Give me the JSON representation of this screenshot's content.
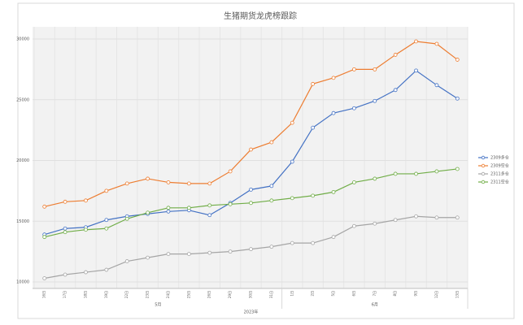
{
  "chart_data": {
    "type": "line",
    "title": "生猪期货龙虎榜跟踪",
    "categories": [
      "16日",
      "17日",
      "18日",
      "19日",
      "22日",
      "23日",
      "24日",
      "25日",
      "26日",
      "29日",
      "30日",
      "31日",
      "1日",
      "2日",
      "5日",
      "6日",
      "7日",
      "8日",
      "9日",
      "12日",
      "13日"
    ],
    "x_groups": [
      {
        "label": "5月",
        "span": 12
      },
      {
        "label": "6月",
        "span": 9
      }
    ],
    "x_super_label": "2023年",
    "series": [
      {
        "name": "2309多仓",
        "color": "#4472c4",
        "values": [
          13900,
          14400,
          14500,
          15100,
          15400,
          15600,
          15800,
          15900,
          15500,
          16500,
          17600,
          17900,
          19900,
          22700,
          23900,
          24300,
          24900,
          25800,
          27400,
          26200,
          25100
        ]
      },
      {
        "name": "2309空仓",
        "color": "#ed7d31",
        "values": [
          16200,
          16600,
          16700,
          17500,
          18100,
          18500,
          18200,
          18100,
          18100,
          19100,
          20900,
          21500,
          23100,
          26300,
          26800,
          27500,
          27500,
          28700,
          29800,
          29600,
          28300
        ]
      },
      {
        "name": "2311多仓",
        "color": "#a5a5a5",
        "values": [
          10300,
          10600,
          10800,
          11000,
          11700,
          12000,
          12300,
          12300,
          12400,
          12500,
          12700,
          12900,
          13200,
          13200,
          13700,
          14600,
          14800,
          15100,
          15400,
          15300,
          15300
        ]
      },
      {
        "name": "2311空仓",
        "color": "#70ad47",
        "values": [
          13700,
          14100,
          14300,
          14400,
          15200,
          15700,
          16100,
          16100,
          16300,
          16400,
          16500,
          16700,
          16900,
          17100,
          17400,
          18200,
          18500,
          18900,
          18900,
          19100,
          19300
        ]
      }
    ],
    "ylim": [
      10000,
      30000
    ],
    "yticks": [
      10000,
      15000,
      20000,
      25000,
      30000
    ],
    "grid": true,
    "legend": "right"
  }
}
